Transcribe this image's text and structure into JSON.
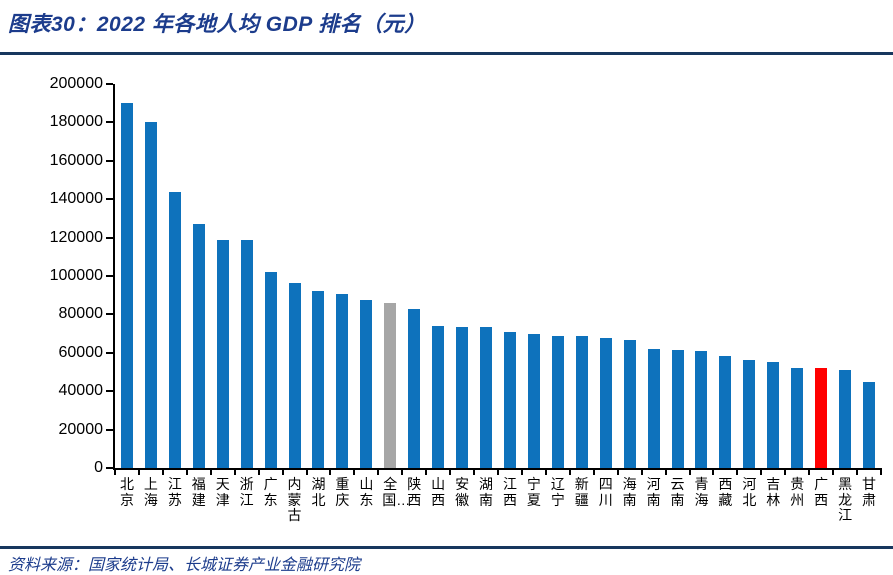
{
  "page": {
    "title": "图表30：2022 年各地人均 GDP 排名（元）",
    "source": "资料来源：国家统计局、长城证券产业金融研究院"
  },
  "colors": {
    "heading_blue": "#1c3c8c",
    "rule_navy": "#17375e",
    "bar_default": "#0e72bc",
    "bar_national": "#a6a6a6",
    "bar_highlight": "#ff0000",
    "axis_black": "#000000"
  },
  "chart_data": {
    "type": "bar",
    "title": "2022 年各地人均 GDP 排名（元）",
    "xlabel": "",
    "ylabel": "",
    "ylim": [
      0,
      200000
    ],
    "ytick_labels": [
      "0",
      "20000",
      "40000",
      "60000",
      "80000",
      "100000",
      "120000",
      "140000",
      "160000",
      "180000",
      "200000"
    ],
    "grid": false,
    "legend": "none",
    "bars": [
      {
        "label": "北京",
        "value": 190000,
        "color": "blue"
      },
      {
        "label": "上海",
        "value": 180000,
        "color": "blue"
      },
      {
        "label": "江苏",
        "value": 144000,
        "color": "blue"
      },
      {
        "label": "福建",
        "value": 127000,
        "color": "blue"
      },
      {
        "label": "天津",
        "value": 119000,
        "color": "blue"
      },
      {
        "label": "浙江",
        "value": 118500,
        "color": "blue"
      },
      {
        "label": "广东",
        "value": 102000,
        "color": "blue"
      },
      {
        "label": "内蒙古",
        "value": 96500,
        "color": "blue"
      },
      {
        "label": "湖北",
        "value": 92000,
        "color": "blue"
      },
      {
        "label": "重庆",
        "value": 90500,
        "color": "blue"
      },
      {
        "label": "山东",
        "value": 87500,
        "color": "blue"
      },
      {
        "label": "全国…",
        "value": 85700,
        "color": "gray"
      },
      {
        "label": "陕西",
        "value": 82900,
        "color": "blue"
      },
      {
        "label": "山西",
        "value": 73700,
        "color": "blue"
      },
      {
        "label": "安徽",
        "value": 73600,
        "color": "blue"
      },
      {
        "label": "湖南",
        "value": 73500,
        "color": "blue"
      },
      {
        "label": "江西",
        "value": 71000,
        "color": "blue"
      },
      {
        "label": "宁夏",
        "value": 69800,
        "color": "blue"
      },
      {
        "label": "辽宁",
        "value": 68800,
        "color": "blue"
      },
      {
        "label": "新疆",
        "value": 68500,
        "color": "blue"
      },
      {
        "label": "四川",
        "value": 67800,
        "color": "blue"
      },
      {
        "label": "海南",
        "value": 66600,
        "color": "blue"
      },
      {
        "label": "河南",
        "value": 62100,
        "color": "blue"
      },
      {
        "label": "云南",
        "value": 61700,
        "color": "blue"
      },
      {
        "label": "青海",
        "value": 60700,
        "color": "blue"
      },
      {
        "label": "西藏",
        "value": 58400,
        "color": "blue"
      },
      {
        "label": "河北",
        "value": 56500,
        "color": "blue"
      },
      {
        "label": "吉林",
        "value": 55300,
        "color": "blue"
      },
      {
        "label": "贵州",
        "value": 52300,
        "color": "blue"
      },
      {
        "label": "广西",
        "value": 52200,
        "color": "red"
      },
      {
        "label": "黑龙江",
        "value": 51100,
        "color": "blue"
      },
      {
        "label": "甘肃",
        "value": 45000,
        "color": "blue"
      }
    ]
  }
}
